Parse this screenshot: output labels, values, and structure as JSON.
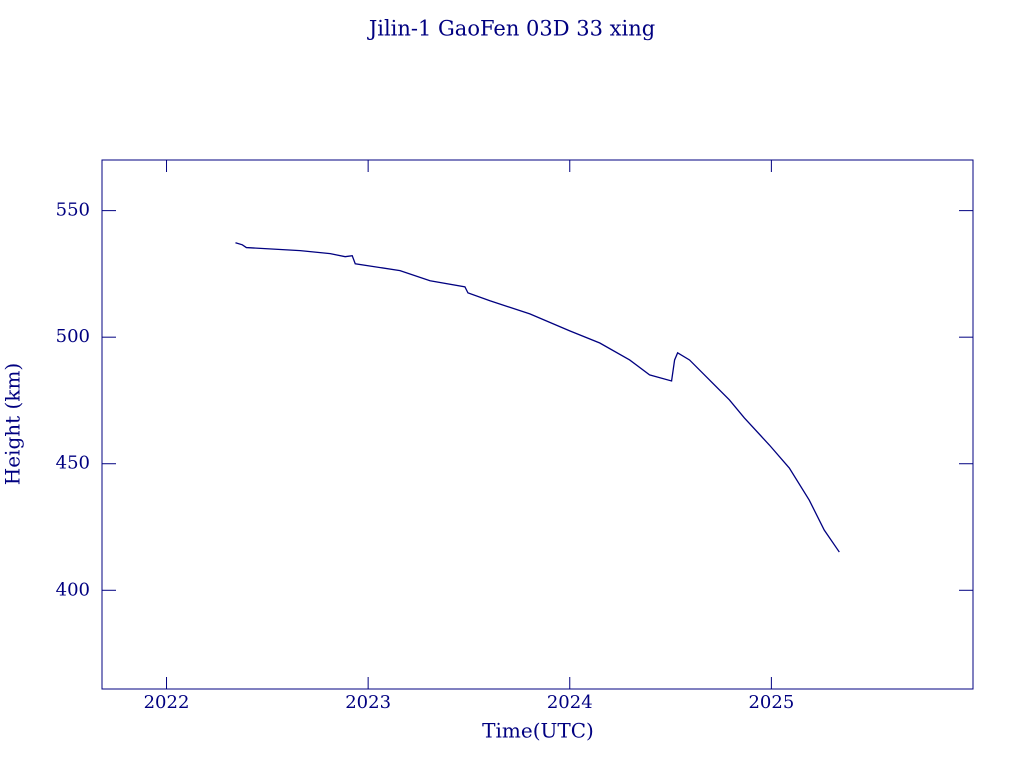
{
  "chart_data": {
    "type": "line",
    "title": "Jilin-1 GaoFen 03D 33 xing",
    "x_label": "Time(UTC)",
    "y_label": "Height (km)",
    "x": [
      2022.342,
      2022.376,
      2022.396,
      2022.663,
      2022.812,
      2022.886,
      2022.921,
      2022.936,
      2023.158,
      2023.307,
      2023.48,
      2023.495,
      2023.604,
      2023.802,
      2024.0,
      2024.149,
      2024.297,
      2024.396,
      2024.505,
      2024.52,
      2024.535,
      2024.594,
      2024.693,
      2024.792,
      2024.866,
      2024.99,
      2025.089,
      2025.188,
      2025.262,
      2025.337
    ],
    "series": [
      {
        "name": "Height",
        "color": "#000080",
        "values": [
          537.3,
          536.5,
          535.4,
          534.2,
          533,
          531.8,
          532.2,
          529,
          526.3,
          522.3,
          519.9,
          517.5,
          514.4,
          509.2,
          502.5,
          497.7,
          491,
          485.1,
          482.7,
          491,
          493.8,
          491,
          483.1,
          475.2,
          468.1,
          457.4,
          448.3,
          435.6,
          423.8,
          415.1
        ]
      }
    ],
    "xlim": [
      2021.68,
      2026.0
    ],
    "xticks": [
      2022,
      2023,
      2024,
      2025
    ],
    "ylim": [
      361,
      570
    ],
    "yticks": [
      400,
      450,
      500,
      550
    ]
  }
}
